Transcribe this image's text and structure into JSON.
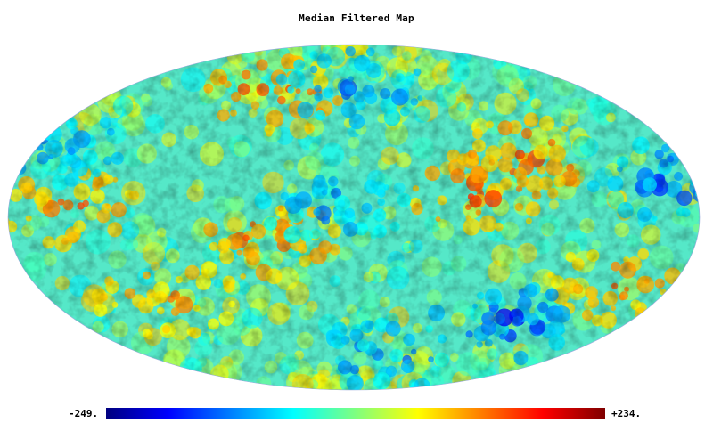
{
  "chart_data": {
    "type": "heatmap",
    "projection": "mollweide",
    "title": "Median Filtered Map",
    "colorbar": {
      "min_label": "-249.",
      "max_label": "+234.",
      "min": -249,
      "max": 234,
      "colormap": "jet",
      "stops": [
        "#00007f",
        "#0000ff",
        "#007fff",
        "#00ffff",
        "#7fff7f",
        "#ffff00",
        "#ff7f00",
        "#ff0000",
        "#7f0000"
      ]
    },
    "hot_regions": [
      {
        "label": "upper-left warm cluster",
        "lon": -95,
        "lat": 25,
        "value": 180
      },
      {
        "label": "center-left warm cluster",
        "lon": -65,
        "lat": 10,
        "value": 170
      },
      {
        "label": "upper-right warm cluster",
        "lon": 60,
        "lat": 55,
        "value": 175
      },
      {
        "label": "center-right warm cluster",
        "lon": 45,
        "lat": -10,
        "value": 165
      },
      {
        "label": "far-right warm cluster",
        "lon": 150,
        "lat": 5,
        "value": 160
      },
      {
        "label": "lower-left warm cluster",
        "lon": -150,
        "lat": -30,
        "value": 150
      },
      {
        "label": "lower-right warm cluster",
        "lon": 110,
        "lat": -35,
        "value": 140
      }
    ],
    "cold_regions": [
      {
        "label": "upper-center cold cluster",
        "lon": 0,
        "lat": 60,
        "value": -190
      },
      {
        "label": "far-left cold cluster",
        "lon": -165,
        "lat": 15,
        "value": -200
      },
      {
        "label": "lower-left cold cluster",
        "lon": -100,
        "lat": -45,
        "value": -210
      },
      {
        "label": "center cold cluster",
        "lon": 10,
        "lat": 5,
        "value": -160
      },
      {
        "label": "far-right cold cluster",
        "lon": 170,
        "lat": 30,
        "value": -180
      },
      {
        "label": "lower-center cold cluster",
        "lon": -30,
        "lat": -65,
        "value": -170
      }
    ]
  }
}
